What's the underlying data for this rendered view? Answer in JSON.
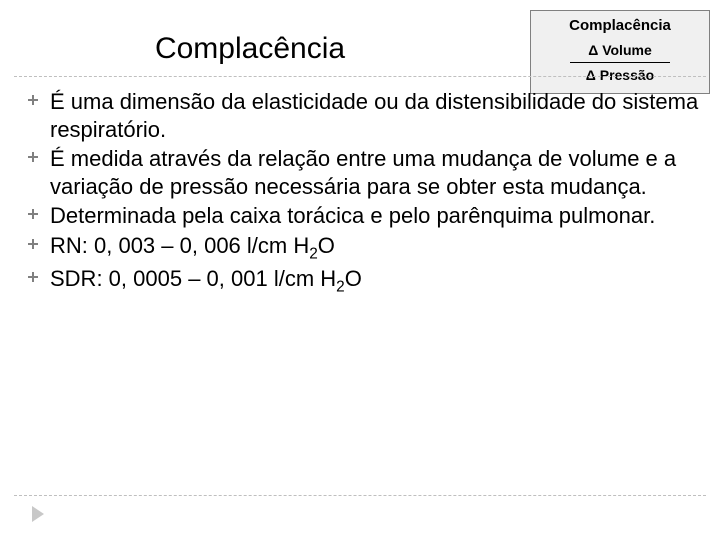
{
  "title": "Complacência",
  "formula": {
    "label": "Complacência",
    "numerator": "Δ Volume",
    "denominator": "Δ Pressão"
  },
  "bullets": [
    {
      "text": "É uma dimensão da elasticidade ou da distensibilidade do sistema respiratório."
    },
    {
      "text": "É medida através da relação entre uma mudança de volume e a variação de pressão necessária para se obter esta mudança."
    },
    {
      "text": "Determinada pela caixa torácica e pelo parênquima pulmonar."
    },
    {
      "html": "RN: 0, 003 – 0, 006 l/cm H<span class=\"sub\">2</span>O"
    },
    {
      "html": "SDR: 0, 0005 – 0, 001 l/cm H<span class=\"sub\">2</span>O"
    }
  ],
  "colors": {
    "background": "#ffffff",
    "text": "#000000",
    "bullet_icon": "#808080",
    "divider": "#bfbfbf",
    "arrow": "#c8c8c8",
    "formula_bg": "#f0f0f0",
    "formula_border": "#808080"
  }
}
